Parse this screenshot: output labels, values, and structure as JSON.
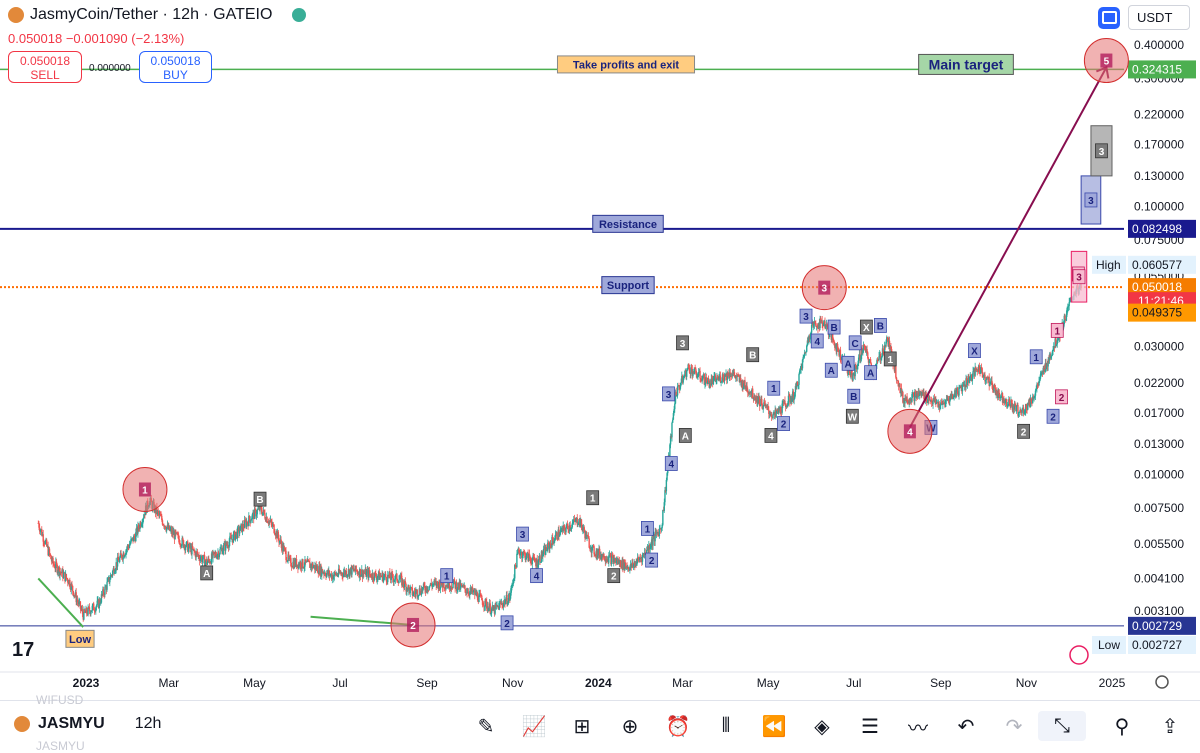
{
  "header": {
    "symbol_title": "JasmyCoin/Tether · 12h · GATEIO",
    "price_change": "0.050018  −0.001090 (−2.13%)",
    "sell_price": "0.050018",
    "sell_label": "SELL",
    "buy_price": "0.050018",
    "buy_label": "BUY",
    "spread": "0.000000",
    "currency": "USDT"
  },
  "toolbar": {
    "symbol": "JASMYU",
    "interval": "12h",
    "ghost_top": "WIFUSD",
    "ghost_bottom": "JASMYU"
  },
  "colors": {
    "up": "#26a69a",
    "down": "#ef5350",
    "target_line": "#4caf50",
    "resistance_line": "#1a1a8e",
    "support_line": "#ff6d00",
    "low_line": "#283593",
    "projection_arrow": "#880e4f"
  },
  "chart_data": {
    "type": "candlestick",
    "title": "JasmyCoin/Tether · 12h · GATEIO",
    "y_scale": "log",
    "y_ticks": [
      "0.400000",
      "0.300000",
      "0.220000",
      "0.170000",
      "0.130000",
      "0.100000",
      "0.075000",
      "0.055000",
      "0.030000",
      "0.022000",
      "0.017000",
      "0.013000",
      "0.010000",
      "0.007500",
      "0.005500",
      "0.004100",
      "0.003100"
    ],
    "x_ticks": [
      {
        "label": "2023",
        "bold": true,
        "date": "2023-01-01"
      },
      {
        "label": "Mar",
        "date": "2023-03-01"
      },
      {
        "label": "May",
        "date": "2023-05-01"
      },
      {
        "label": "Jul",
        "date": "2023-07-01"
      },
      {
        "label": "Sep",
        "date": "2023-09-01"
      },
      {
        "label": "Nov",
        "date": "2023-11-01"
      },
      {
        "label": "2024",
        "bold": true,
        "date": "2024-01-01"
      },
      {
        "label": "Mar",
        "date": "2024-03-01"
      },
      {
        "label": "May",
        "date": "2024-05-01"
      },
      {
        "label": "Jul",
        "date": "2024-07-01"
      },
      {
        "label": "Sep",
        "date": "2024-09-01"
      },
      {
        "label": "Nov",
        "date": "2024-11-01"
      },
      {
        "label": "2025",
        "date": "2025-01-01"
      }
    ],
    "price_path": [
      [
        "2022-11-28",
        0.0066
      ],
      [
        "2022-12-08",
        0.0047
      ],
      [
        "2022-12-20",
        0.004
      ],
      [
        "2022-12-30",
        0.003
      ],
      [
        "2023-01-10",
        0.0033
      ],
      [
        "2023-01-22",
        0.0046
      ],
      [
        "2023-02-05",
        0.0059
      ],
      [
        "2023-02-15",
        0.008
      ],
      [
        "2023-02-28",
        0.0063
      ],
      [
        "2023-03-12",
        0.0055
      ],
      [
        "2023-03-28",
        0.0047
      ],
      [
        "2023-04-10",
        0.0054
      ],
      [
        "2023-04-25",
        0.0066
      ],
      [
        "2023-05-05",
        0.0075
      ],
      [
        "2023-05-15",
        0.0063
      ],
      [
        "2023-05-26",
        0.0047
      ],
      [
        "2023-06-10",
        0.0046
      ],
      [
        "2023-06-25",
        0.0042
      ],
      [
        "2023-07-10",
        0.0044
      ],
      [
        "2023-07-26",
        0.0042
      ],
      [
        "2023-08-12",
        0.0041
      ],
      [
        "2023-08-22",
        0.0036
      ],
      [
        "2023-09-05",
        0.0039
      ],
      [
        "2023-09-20",
        0.0039
      ],
      [
        "2023-10-05",
        0.0036
      ],
      [
        "2023-10-18",
        0.0031
      ],
      [
        "2023-10-30",
        0.0035
      ],
      [
        "2023-11-05",
        0.0052
      ],
      [
        "2023-11-18",
        0.0047
      ],
      [
        "2023-12-03",
        0.006
      ],
      [
        "2023-12-18",
        0.0068
      ],
      [
        "2023-12-28",
        0.0052
      ],
      [
        "2024-01-12",
        0.0048
      ],
      [
        "2024-01-24",
        0.0045
      ],
      [
        "2024-02-02",
        0.005
      ],
      [
        "2024-02-15",
        0.0064
      ],
      [
        "2024-02-25",
        0.02
      ],
      [
        "2024-03-05",
        0.025
      ],
      [
        "2024-03-20",
        0.022
      ],
      [
        "2024-04-05",
        0.024
      ],
      [
        "2024-04-20",
        0.02
      ],
      [
        "2024-05-05",
        0.0165
      ],
      [
        "2024-05-20",
        0.02
      ],
      [
        "2024-06-01",
        0.036
      ],
      [
        "2024-06-10",
        0.037
      ],
      [
        "2024-06-20",
        0.029
      ],
      [
        "2024-06-30",
        0.023
      ],
      [
        "2024-07-08",
        0.03
      ],
      [
        "2024-07-15",
        0.024
      ],
      [
        "2024-07-25",
        0.032
      ],
      [
        "2024-08-05",
        0.019
      ],
      [
        "2024-08-18",
        0.02
      ],
      [
        "2024-09-01",
        0.018
      ],
      [
        "2024-09-15",
        0.021
      ],
      [
        "2024-09-28",
        0.025
      ],
      [
        "2024-10-12",
        0.02
      ],
      [
        "2024-10-28",
        0.017
      ],
      [
        "2024-11-05",
        0.019
      ],
      [
        "2024-11-14",
        0.025
      ],
      [
        "2024-11-25",
        0.034
      ],
      [
        "2024-12-05",
        0.048
      ],
      [
        "2024-12-10",
        0.05
      ]
    ],
    "horizontal_lines": [
      {
        "name": "target",
        "price": 0.324315,
        "label": "Take profits and exit",
        "label2": "Main target",
        "axis_label": "0.324315"
      },
      {
        "name": "resistance",
        "price": 0.082498,
        "label": "Resistance",
        "axis_label": "0.082498"
      },
      {
        "name": "support",
        "price": 0.050018,
        "label": "Support",
        "axis_label": "0.050018"
      },
      {
        "name": "low",
        "price": 0.002729,
        "label": "Low",
        "axis_label": "0.002729"
      }
    ],
    "axis_badges": {
      "high_value": "0.060577",
      "high_label": "High",
      "current_value": "0.050018",
      "countdown": "11:21:46",
      "orange_value": "0.049375",
      "low_value": "0.002727",
      "low_label": "Low"
    },
    "wave_circles": [
      {
        "label": "1",
        "date": "2023-02-12",
        "price": 0.0088
      },
      {
        "label": "2",
        "date": "2023-08-22",
        "price": 0.00275
      },
      {
        "label": "3",
        "date": "2024-06-10",
        "price": 0.0498
      },
      {
        "label": "4",
        "date": "2024-08-10",
        "price": 0.0145
      },
      {
        "label": "5",
        "date": "2024-12-28",
        "price": 0.35
      }
    ],
    "wave_labels": [
      {
        "t": "A",
        "date": "2023-03-28",
        "price": 0.0043,
        "c": "gray"
      },
      {
        "t": "B",
        "date": "2023-05-05",
        "price": 0.0081,
        "c": "gray"
      },
      {
        "t": "1",
        "date": "2023-09-15",
        "price": 0.0042,
        "c": "blue"
      },
      {
        "t": "2",
        "date": "2023-10-28",
        "price": 0.0028,
        "c": "blue"
      },
      {
        "t": "3",
        "date": "2023-11-08",
        "price": 0.006,
        "c": "blue"
      },
      {
        "t": "4",
        "date": "2023-11-18",
        "price": 0.0042,
        "c": "blue"
      },
      {
        "t": "1",
        "date": "2023-12-28",
        "price": 0.0082,
        "c": "gray"
      },
      {
        "t": "2",
        "date": "2024-01-12",
        "price": 0.0042,
        "c": "gray"
      },
      {
        "t": "1",
        "date": "2024-02-05",
        "price": 0.0063,
        "c": "blue"
      },
      {
        "t": "2",
        "date": "2024-02-08",
        "price": 0.0048,
        "c": "blue"
      },
      {
        "t": "3",
        "date": "2024-02-20",
        "price": 0.02,
        "c": "blue"
      },
      {
        "t": "4",
        "date": "2024-02-22",
        "price": 0.011,
        "c": "blue"
      },
      {
        "t": "3",
        "date": "2024-03-01",
        "price": 0.031,
        "c": "gray"
      },
      {
        "t": "A",
        "date": "2024-03-03",
        "price": 0.014,
        "c": "gray"
      },
      {
        "t": "B",
        "date": "2024-04-20",
        "price": 0.028,
        "c": "gray"
      },
      {
        "t": "1",
        "date": "2024-05-05",
        "price": 0.021,
        "c": "blue"
      },
      {
        "t": "4",
        "date": "2024-05-03",
        "price": 0.014,
        "c": "gray"
      },
      {
        "t": "2",
        "date": "2024-05-12",
        "price": 0.0155,
        "c": "blue"
      },
      {
        "t": "3",
        "date": "2024-05-28",
        "price": 0.039,
        "c": "blue"
      },
      {
        "t": "4",
        "date": "2024-06-05",
        "price": 0.0315,
        "c": "blue"
      },
      {
        "t": "B",
        "date": "2024-06-17",
        "price": 0.0355,
        "c": "blue"
      },
      {
        "t": "A",
        "date": "2024-06-15",
        "price": 0.0245,
        "c": "blue"
      },
      {
        "t": "A",
        "date": "2024-06-27",
        "price": 0.026,
        "c": "blue"
      },
      {
        "t": "W",
        "date": "2024-06-30",
        "price": 0.0165,
        "c": "gray"
      },
      {
        "t": "B",
        "date": "2024-07-01",
        "price": 0.0196,
        "c": "blue"
      },
      {
        "t": "C",
        "date": "2024-07-02",
        "price": 0.031,
        "c": "blue"
      },
      {
        "t": "X",
        "date": "2024-07-10",
        "price": 0.0355,
        "c": "gray"
      },
      {
        "t": "A",
        "date": "2024-07-13",
        "price": 0.024,
        "c": "blue"
      },
      {
        "t": "B",
        "date": "2024-07-20",
        "price": 0.036,
        "c": "blue"
      },
      {
        "t": "1",
        "date": "2024-07-27",
        "price": 0.027,
        "c": "gray"
      },
      {
        "t": "W",
        "date": "2024-08-25",
        "price": 0.015,
        "c": "blue"
      },
      {
        "t": "X",
        "date": "2024-09-25",
        "price": 0.029,
        "c": "blue"
      },
      {
        "t": "2",
        "date": "2024-10-30",
        "price": 0.0145,
        "c": "gray"
      },
      {
        "t": "1",
        "date": "2024-11-08",
        "price": 0.0275,
        "c": "blue"
      },
      {
        "t": "2",
        "date": "2024-11-20",
        "price": 0.0165,
        "c": "blue"
      },
      {
        "t": "1",
        "date": "2024-11-23",
        "price": 0.0345,
        "c": "pink"
      },
      {
        "t": "2",
        "date": "2024-11-26",
        "price": 0.0195,
        "c": "pink"
      },
      {
        "t": "3",
        "date": "2024-12-08",
        "price": 0.056,
        "c": "pink"
      }
    ],
    "boxes": [
      {
        "label": "3",
        "date_from": "2024-12-03",
        "date_to": "2024-12-14",
        "price_low": 0.044,
        "price_high": 0.068,
        "c": "pink"
      },
      {
        "label": "3",
        "date_from": "2024-12-10",
        "date_to": "2024-12-24",
        "price_low": 0.086,
        "price_high": 0.13,
        "c": "blue"
      },
      {
        "label": "3",
        "date_from": "2024-12-17",
        "date_to": "2025-01-01",
        "price_low": 0.13,
        "price_high": 0.2,
        "c": "gray"
      }
    ],
    "trend_lines": [
      {
        "name": "low-trend-2023",
        "from": [
          "2022-11-28",
          0.0041
        ],
        "to": [
          "2022-12-30",
          0.0027
        ]
      },
      {
        "name": "low-trend-2023b",
        "from": [
          "2023-06-10",
          0.00295
        ],
        "to": [
          "2023-08-22",
          0.00275
        ]
      }
    ],
    "projection": {
      "from": [
        "2024-08-10",
        0.015
      ],
      "to": [
        "2024-12-28",
        0.33
      ]
    }
  }
}
